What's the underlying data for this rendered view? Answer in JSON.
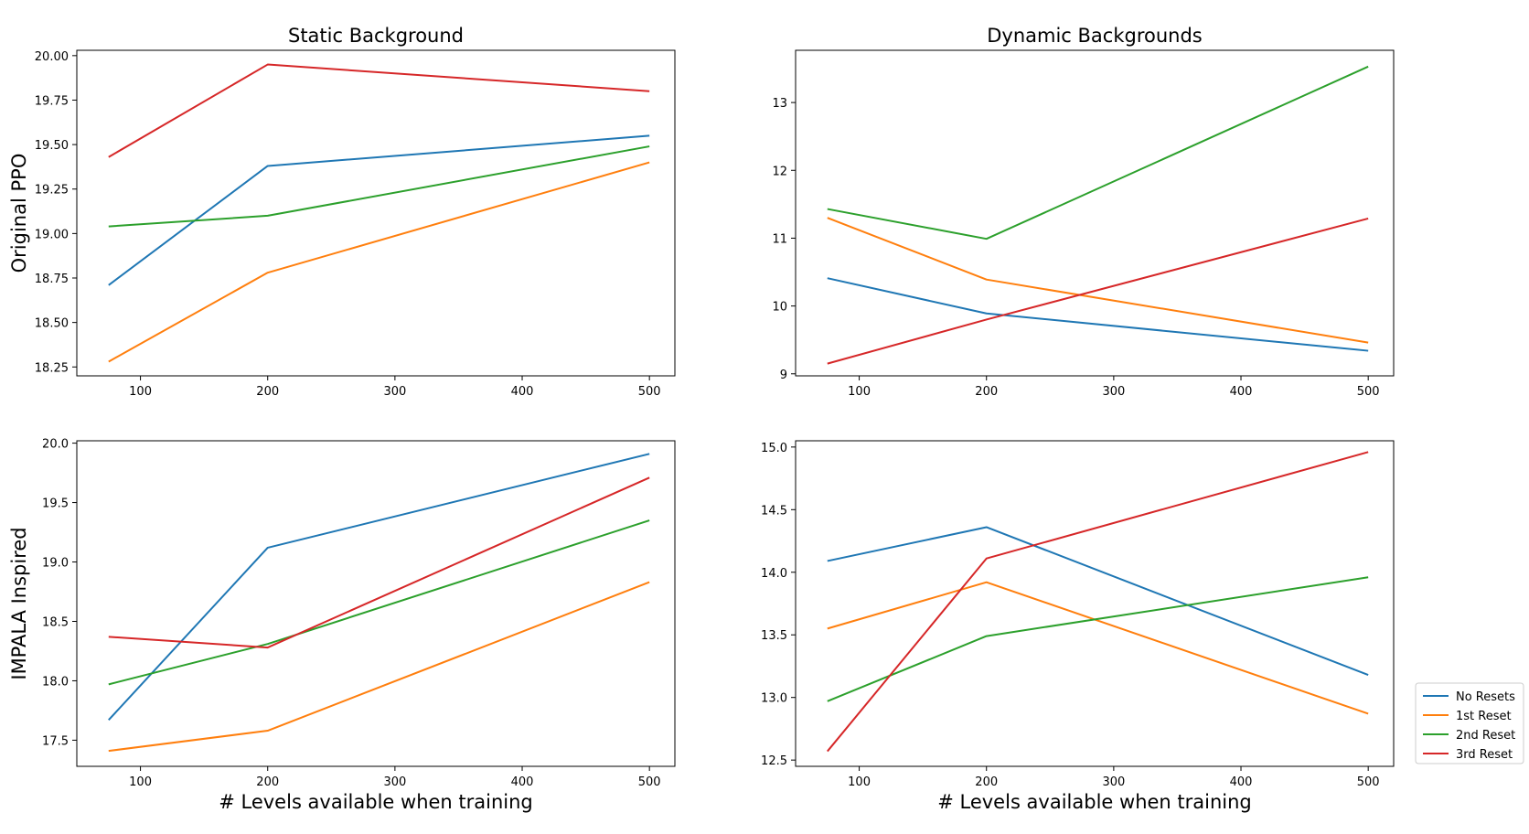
{
  "chart_data": [
    {
      "type": "line",
      "title": "Static Background",
      "xlabel": "",
      "ylabel": "Original PPO",
      "x": [
        75,
        200,
        500
      ],
      "xlim": [
        50,
        520
      ],
      "ylim": [
        18.2,
        20.03
      ],
      "xticks": [
        100,
        200,
        300,
        400,
        500
      ],
      "yticks": [
        18.25,
        18.5,
        18.75,
        19.0,
        19.25,
        19.5,
        19.75,
        20.0
      ],
      "ytick_labels": [
        "18.25",
        "18.50",
        "18.75",
        "19.00",
        "19.25",
        "19.50",
        "19.75",
        "20.00"
      ],
      "series": [
        {
          "name": "No Resets",
          "values": [
            18.71,
            19.38,
            19.55
          ]
        },
        {
          "name": "1st Reset",
          "values": [
            18.28,
            18.78,
            19.4
          ]
        },
        {
          "name": "2nd Reset",
          "values": [
            19.04,
            19.1,
            19.49
          ]
        },
        {
          "name": "3rd Reset",
          "values": [
            19.43,
            19.95,
            19.8
          ]
        }
      ]
    },
    {
      "type": "line",
      "title": "Dynamic Backgrounds",
      "xlabel": "",
      "ylabel": "",
      "x": [
        75,
        200,
        500
      ],
      "xlim": [
        50,
        520
      ],
      "ylim": [
        8.97,
        13.77
      ],
      "xticks": [
        100,
        200,
        300,
        400,
        500
      ],
      "yticks": [
        9,
        10,
        11,
        12,
        13
      ],
      "ytick_labels": [
        "9",
        "10",
        "11",
        "12",
        "13"
      ],
      "series": [
        {
          "name": "No Resets",
          "values": [
            10.41,
            9.89,
            9.34
          ]
        },
        {
          "name": "1st Reset",
          "values": [
            11.3,
            10.39,
            9.46
          ]
        },
        {
          "name": "2nd Reset",
          "values": [
            11.43,
            10.99,
            13.53
          ]
        },
        {
          "name": "3rd Reset",
          "values": [
            9.15,
            9.8,
            11.29
          ]
        }
      ]
    },
    {
      "type": "line",
      "title": "",
      "xlabel": "# Levels available when training",
      "ylabel": "IMPALA Inspired",
      "x": [
        75,
        200,
        500
      ],
      "xlim": [
        50,
        520
      ],
      "ylim": [
        17.28,
        20.02
      ],
      "xticks": [
        100,
        200,
        300,
        400,
        500
      ],
      "yticks": [
        17.5,
        18.0,
        18.5,
        19.0,
        19.5,
        20.0
      ],
      "ytick_labels": [
        "17.5",
        "18.0",
        "18.5",
        "19.0",
        "19.5",
        "20.0"
      ],
      "series": [
        {
          "name": "No Resets",
          "values": [
            17.67,
            19.12,
            19.91
          ]
        },
        {
          "name": "1st Reset",
          "values": [
            17.41,
            17.58,
            18.83
          ]
        },
        {
          "name": "2nd Reset",
          "values": [
            17.97,
            18.31,
            19.35
          ]
        },
        {
          "name": "3rd Reset",
          "values": [
            18.37,
            18.28,
            19.71
          ]
        }
      ]
    },
    {
      "type": "line",
      "title": "",
      "xlabel": "# Levels available when training",
      "ylabel": "",
      "x": [
        75,
        200,
        500
      ],
      "xlim": [
        50,
        520
      ],
      "ylim": [
        12.45,
        15.05
      ],
      "xticks": [
        100,
        200,
        300,
        400,
        500
      ],
      "yticks": [
        12.5,
        13.0,
        13.5,
        14.0,
        14.5,
        15.0
      ],
      "ytick_labels": [
        "12.5",
        "13.0",
        "13.5",
        "14.0",
        "14.5",
        "15.0"
      ],
      "series": [
        {
          "name": "No Resets",
          "values": [
            14.09,
            14.36,
            13.18
          ]
        },
        {
          "name": "1st Reset",
          "values": [
            13.55,
            13.92,
            12.87
          ]
        },
        {
          "name": "2nd Reset",
          "values": [
            12.97,
            13.49,
            13.96
          ]
        },
        {
          "name": "3rd Reset",
          "values": [
            12.57,
            14.11,
            14.96
          ]
        }
      ]
    }
  ],
  "legend": {
    "placement": "lower-right-outside",
    "items": [
      {
        "label": "No Resets",
        "color": "#1f77b4"
      },
      {
        "label": "1st Reset",
        "color": "#ff7f0e"
      },
      {
        "label": "2nd Reset",
        "color": "#2ca02c"
      },
      {
        "label": "3rd Reset",
        "color": "#d62728"
      }
    ]
  },
  "colors": {
    "No Resets": "#1f77b4",
    "1st Reset": "#ff7f0e",
    "2nd Reset": "#2ca02c",
    "3rd Reset": "#d62728"
  }
}
